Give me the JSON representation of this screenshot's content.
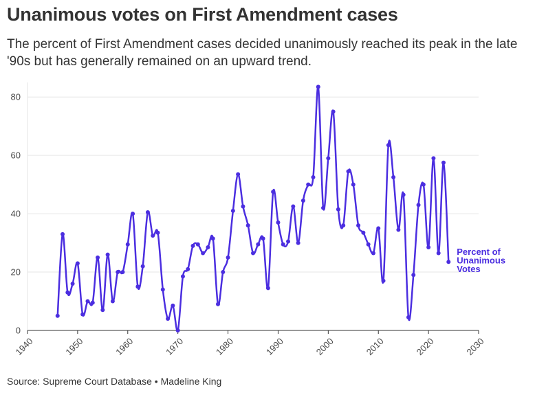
{
  "header": {
    "title": "Unanimous votes on First Amendment cases",
    "subtitle": "The percent of First Amendment cases decided unanimously reached its peak in the late '90s but has generally remained on an upward trend."
  },
  "footer": {
    "source": "Source: Supreme Court Database • Madeline King"
  },
  "colors": {
    "line": "#4b2ee0",
    "grid": "#e6e6e6",
    "axis": "#333333"
  },
  "chart_data": {
    "type": "line",
    "title": "Unanimous votes on First Amendment cases",
    "xlabel": "",
    "ylabel": "",
    "xlim": [
      1940,
      2030
    ],
    "ylim": [
      0,
      85
    ],
    "xticks": [
      1940,
      1950,
      1960,
      1970,
      1980,
      1990,
      2000,
      2010,
      2020,
      2030
    ],
    "yticks": [
      0,
      20,
      40,
      60,
      80
    ],
    "grid": true,
    "series": [
      {
        "name": "Percent of Unanimous Votes",
        "label_lines": [
          "Percent of",
          "Unanimous",
          "Votes"
        ],
        "x": [
          1946,
          1947,
          1948,
          1949,
          1950,
          1951,
          1952,
          1953,
          1954,
          1955,
          1956,
          1957,
          1958,
          1959,
          1960,
          1961,
          1962,
          1963,
          1964,
          1965,
          1966,
          1967,
          1968,
          1969,
          1970,
          1971,
          1972,
          1973,
          1974,
          1975,
          1976,
          1977,
          1978,
          1979,
          1980,
          1981,
          1982,
          1983,
          1984,
          1985,
          1986,
          1987,
          1988,
          1989,
          1990,
          1991,
          1992,
          1993,
          1994,
          1995,
          1996,
          1997,
          1998,
          1999,
          2000,
          2001,
          2002,
          2003,
          2004,
          2005,
          2006,
          2007,
          2008,
          2009,
          2010,
          2011,
          2012,
          2013,
          2014,
          2015,
          2016,
          2017,
          2018,
          2019,
          2020,
          2021,
          2022,
          2023,
          2024
        ],
        "y": [
          5,
          33,
          13,
          16,
          23,
          5.5,
          10,
          9.5,
          25,
          7,
          26,
          10,
          20,
          20,
          29.5,
          40,
          15,
          22,
          40.5,
          32.5,
          33.5,
          14,
          4,
          8.5,
          0,
          18.5,
          21,
          29,
          29.5,
          26.5,
          28.5,
          31.5,
          9,
          20,
          25,
          41,
          53.5,
          42.5,
          36,
          26.5,
          29.5,
          31.5,
          14.5,
          47.5,
          37,
          29.5,
          30.5,
          42.5,
          30,
          44.5,
          50,
          52.5,
          83.5,
          42,
          59,
          75,
          41.5,
          36,
          54.5,
          50,
          36,
          33.5,
          29.5,
          26.5,
          35,
          17,
          63.5,
          52.5,
          34.5,
          46.5,
          4.5,
          19,
          43,
          50,
          28.5,
          59,
          26.5,
          57.5,
          23.5
        ]
      }
    ]
  }
}
